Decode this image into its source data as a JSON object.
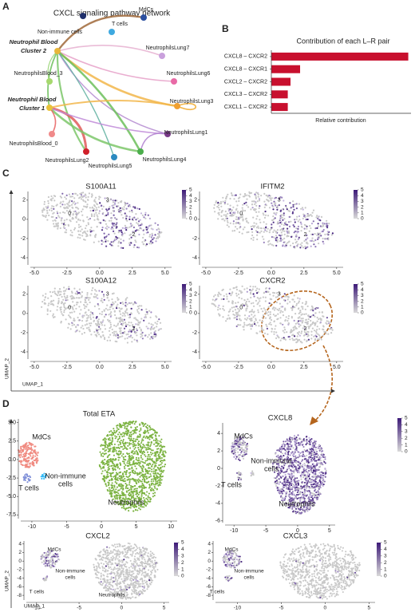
{
  "panel_labels": [
    "A",
    "B",
    "C",
    "D"
  ],
  "chart_data": [
    {
      "type": "network",
      "title": "CXCL signaling pathway network",
      "nodes": [
        {
          "label_lines": [
            "Non-immune cells"
          ],
          "color": "#1f2f6b"
        },
        {
          "label_lines": [
            "T cells"
          ],
          "color": "#3fa9e0"
        },
        {
          "label_lines": [
            "MdCs"
          ],
          "color": "#2b4fa0"
        },
        {
          "label_lines": [
            "Neutrophil Blood",
            "Cluster 2"
          ],
          "color": "#e8b63a",
          "highlight": true
        },
        {
          "label_lines": [
            "NeutrophilsLung7"
          ],
          "color": "#c9a0dc"
        },
        {
          "label_lines": [
            "NeutrophilsBlood_3"
          ],
          "color": "#a6d86e"
        },
        {
          "label_lines": [
            "NeutrophilsLung6"
          ],
          "color": "#e86aa6"
        },
        {
          "label_lines": [
            "Neutrophil Blood",
            "Cluster 1"
          ],
          "color": "#e8c23a",
          "highlight": true
        },
        {
          "label_lines": [
            "NeutrophilsLung3"
          ],
          "color": "#f0a030"
        },
        {
          "label_lines": [
            "NeutrophilsBlood_0"
          ],
          "color": "#f08a8a"
        },
        {
          "label_lines": [
            "NeutrophilsLung1"
          ],
          "color": "#7a3a8a"
        },
        {
          "label_lines": [
            "NeutrophilsLung2"
          ],
          "color": "#d0202a"
        },
        {
          "label_lines": [
            "NeutrophilsLung4"
          ],
          "color": "#4cae4c"
        },
        {
          "label_lines": [
            "NeutrophilsLung5"
          ],
          "color": "#2a8ac0"
        }
      ]
    },
    {
      "type": "bar",
      "title": "Contribution of each L–R pair",
      "categories": [
        "CXCL8 – CXCR2",
        "CXCL8 – CXCR1",
        "CXCL2 – CXCR2",
        "CXCL3 – CXCR2",
        "CXCL1 – CXCR2"
      ],
      "values": [
        1,
        0.21,
        0.14,
        0.12,
        0.12
      ],
      "xlim": [
        0,
        1.02
      ],
      "xlabel": "Relative contribution",
      "color": "#c8102e"
    },
    {
      "type": "umap",
      "xlabel": "UMAP_1",
      "ylabel": "UMAP_2",
      "xlim": [
        -5.3,
        5.5
      ],
      "ylim": [
        -4.75,
        2.9
      ],
      "xticks": [
        {
          "value": -5,
          "label": "-5.0"
        },
        {
          "value": -2.5,
          "label": "-2.5"
        },
        {
          "value": 0,
          "label": "0.0"
        },
        {
          "value": 2.5,
          "label": "2.5"
        },
        {
          "value": 5,
          "label": "5.0"
        }
      ],
      "yticks": [
        2,
        0,
        -2,
        -4
      ],
      "colorbar": true,
      "colorbar_ticks": [
        5,
        4,
        3,
        2,
        1,
        0
      ],
      "colormap": [
        "#d9d9d9",
        "#3d1a78"
      ],
      "clusters": [
        "0",
        "3",
        "2"
      ],
      "panels": [
        {
          "title": "S100A11"
        },
        {
          "title": "IFITM2"
        },
        {
          "title": "S100A12"
        },
        {
          "title": "CXCR2"
        }
      ]
    },
    {
      "type": "umap",
      "xlabel": "UMAP_1",
      "ylabel": "UMAP_2",
      "colorbar_ticks": [
        5,
        4,
        3,
        2,
        1,
        0
      ],
      "colormap": [
        "#d9d9d9",
        "#3d1a78"
      ],
      "panels": [
        {
          "title": "Total ETA",
          "colorbar": false,
          "xlim": [
            -11.6,
            10.9
          ],
          "ylim": [
            -8,
            5.5
          ],
          "xticks": [
            -10,
            -5,
            0,
            5,
            10
          ],
          "yticks": [
            {
              "value": 5,
              "label": "5.0"
            },
            {
              "value": 2.5,
              "label": "2.5"
            },
            {
              "value": 0,
              "label": "0.0"
            },
            {
              "value": -2.5,
              "label": "-2.5"
            },
            {
              "value": -5,
              "label": "-5.0"
            },
            {
              "value": -7.5,
              "label": "-7.5"
            }
          ],
          "annotations": [
            [
              "MdCs"
            ],
            [
              "T cells"
            ],
            [
              "Non-immune",
              "cells"
            ],
            [
              "Neutrophils"
            ]
          ]
        },
        {
          "title": "CXCL8",
          "colorbar": true,
          "xlim": [
            -11.4,
            5.9
          ],
          "ylim": [
            -6.2,
            5.2
          ],
          "xticks": [
            -10,
            -5,
            0,
            5
          ],
          "yticks": [
            4,
            2,
            0,
            -2,
            -4,
            -6
          ],
          "annotations": [
            [
              "MdCs"
            ],
            [
              "T cells"
            ],
            [
              "Non-immune",
              "cells"
            ],
            [
              "Neutrophils"
            ]
          ]
        },
        {
          "title": "CXCL2",
          "colorbar": true,
          "xlim": [
            -11.2,
            5.6
          ],
          "ylim": [
            -9.1,
            4.7
          ],
          "xticks": [
            -10,
            -5,
            0,
            5
          ],
          "yticks": [
            4,
            2,
            0,
            -2,
            -4,
            -6,
            -8
          ],
          "annotations": [
            [
              "MdCs"
            ],
            [
              "T cells"
            ],
            [
              "Non-immune",
              "cells"
            ],
            [
              "Neutrophils"
            ]
          ]
        },
        {
          "title": "CXCL3",
          "colorbar": true,
          "xlim": [
            -12.5,
            5.7
          ],
          "ylim": [
            -9.1,
            4.7
          ],
          "xticks": [
            -10,
            -5,
            0,
            5
          ],
          "yticks": [
            4,
            2,
            0,
            -2,
            -4,
            -6,
            -8
          ],
          "annotations": [
            [
              "MdCs"
            ],
            [
              "T cells"
            ],
            [
              "Non-immune",
              "cells"
            ]
          ]
        }
      ]
    }
  ]
}
